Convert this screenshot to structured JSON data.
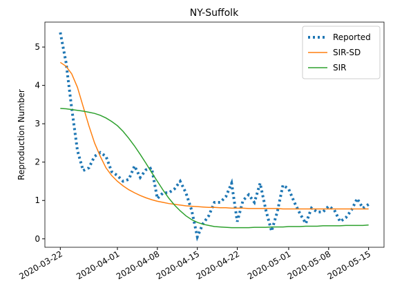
{
  "chart_data": {
    "type": "line",
    "title": "NY-Suffolk",
    "y_label": "Reproduction Number",
    "x": [
      "2020-03-22",
      "2020-03-23",
      "2020-03-24",
      "2020-03-25",
      "2020-03-26",
      "2020-03-27",
      "2020-03-28",
      "2020-03-29",
      "2020-03-30",
      "2020-03-31",
      "2020-04-01",
      "2020-04-02",
      "2020-04-03",
      "2020-04-04",
      "2020-04-05",
      "2020-04-06",
      "2020-04-07",
      "2020-04-08",
      "2020-04-09",
      "2020-04-10",
      "2020-04-11",
      "2020-04-12",
      "2020-04-13",
      "2020-04-14",
      "2020-04-15",
      "2020-04-16",
      "2020-04-17",
      "2020-04-18",
      "2020-04-19",
      "2020-04-20",
      "2020-04-21",
      "2020-04-22",
      "2020-04-23",
      "2020-04-24",
      "2020-04-25",
      "2020-04-26",
      "2020-04-27",
      "2020-04-28",
      "2020-04-29",
      "2020-04-30",
      "2020-05-01",
      "2020-05-02",
      "2020-05-03",
      "2020-05-04",
      "2020-05-05",
      "2020-05-06",
      "2020-05-07",
      "2020-05-08",
      "2020-05-09",
      "2020-05-10",
      "2020-05-11",
      "2020-05-12",
      "2020-05-13",
      "2020-05-14",
      "2020-05-15"
    ],
    "series": [
      {
        "name": "Reported",
        "color": "#1f77b4",
        "style": "dotted",
        "values": [
          5.38,
          4.6,
          3.4,
          2.3,
          1.78,
          1.85,
          2.15,
          2.25,
          2.15,
          1.75,
          1.65,
          1.5,
          1.55,
          1.9,
          1.6,
          1.8,
          1.85,
          1.05,
          1.2,
          1.2,
          1.3,
          1.5,
          1.2,
          0.75,
          0.05,
          0.4,
          0.6,
          0.95,
          0.95,
          1.1,
          1.45,
          0.45,
          1.0,
          1.15,
          0.95,
          1.45,
          0.75,
          0.2,
          0.7,
          1.4,
          1.3,
          0.95,
          0.65,
          0.4,
          0.8,
          0.7,
          0.7,
          0.85,
          0.75,
          0.45,
          0.55,
          0.75,
          1.05,
          0.8,
          0.9
        ]
      },
      {
        "name": "SIR-SD",
        "color": "#ff7f0e",
        "style": "solid",
        "values": [
          4.6,
          4.5,
          4.3,
          3.95,
          3.45,
          2.95,
          2.5,
          2.15,
          1.85,
          1.65,
          1.5,
          1.38,
          1.28,
          1.2,
          1.13,
          1.07,
          1.02,
          0.98,
          0.95,
          0.92,
          0.9,
          0.88,
          0.86,
          0.85,
          0.84,
          0.83,
          0.82,
          0.82,
          0.81,
          0.81,
          0.8,
          0.8,
          0.8,
          0.79,
          0.79,
          0.79,
          0.79,
          0.79,
          0.79,
          0.78,
          0.78,
          0.78,
          0.78,
          0.78,
          0.78,
          0.78,
          0.78,
          0.78,
          0.78,
          0.78,
          0.78,
          0.78,
          0.78,
          0.78,
          0.78
        ]
      },
      {
        "name": "SIR",
        "color": "#2ca02c",
        "style": "solid",
        "values": [
          3.4,
          3.39,
          3.37,
          3.35,
          3.33,
          3.3,
          3.27,
          3.22,
          3.15,
          3.06,
          2.95,
          2.8,
          2.62,
          2.42,
          2.2,
          1.97,
          1.73,
          1.5,
          1.27,
          1.06,
          0.88,
          0.73,
          0.6,
          0.5,
          0.43,
          0.38,
          0.35,
          0.32,
          0.31,
          0.3,
          0.29,
          0.29,
          0.29,
          0.29,
          0.3,
          0.3,
          0.3,
          0.31,
          0.31,
          0.31,
          0.32,
          0.32,
          0.32,
          0.33,
          0.33,
          0.33,
          0.34,
          0.34,
          0.34,
          0.34,
          0.35,
          0.35,
          0.35,
          0.35,
          0.36
        ]
      }
    ],
    "xlim": [
      "2020-03-19T07:12",
      "2020-05-17T16:48"
    ],
    "xticks": [
      "2020-03-22",
      "2020-04-01",
      "2020-04-08",
      "2020-04-15",
      "2020-04-22",
      "2020-05-01",
      "2020-05-08",
      "2020-05-15"
    ],
    "ylim": [
      -0.22,
      5.65
    ],
    "yticks": [
      0,
      1,
      2,
      3,
      4,
      5
    ],
    "legend": "upper right"
  }
}
